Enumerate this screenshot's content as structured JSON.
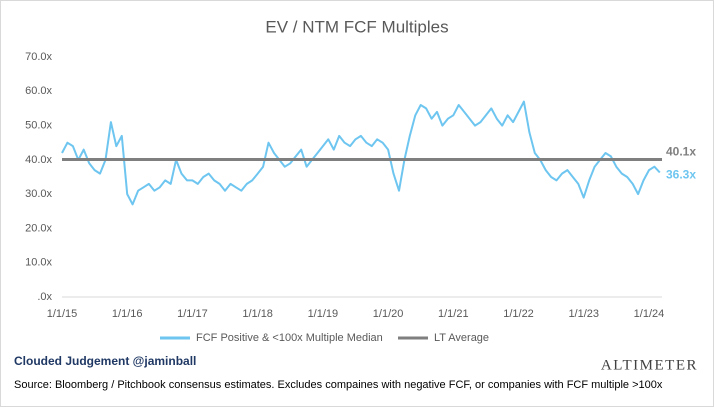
{
  "chart_data": {
    "type": "line",
    "title": "EV / NTM FCF Multiples",
    "x": [
      2015.0,
      2015.083,
      2015.167,
      2015.25,
      2015.333,
      2015.417,
      2015.5,
      2015.583,
      2015.667,
      2015.75,
      2015.833,
      2015.917,
      2016.0,
      2016.083,
      2016.167,
      2016.25,
      2016.333,
      2016.417,
      2016.5,
      2016.583,
      2016.667,
      2016.75,
      2016.833,
      2016.917,
      2017.0,
      2017.083,
      2017.167,
      2017.25,
      2017.333,
      2017.417,
      2017.5,
      2017.583,
      2017.667,
      2017.75,
      2017.833,
      2017.917,
      2018.0,
      2018.083,
      2018.167,
      2018.25,
      2018.333,
      2018.417,
      2018.5,
      2018.583,
      2018.667,
      2018.75,
      2018.833,
      2018.917,
      2019.0,
      2019.083,
      2019.167,
      2019.25,
      2019.333,
      2019.417,
      2019.5,
      2019.583,
      2019.667,
      2019.75,
      2019.833,
      2019.917,
      2020.0,
      2020.083,
      2020.167,
      2020.25,
      2020.333,
      2020.417,
      2020.5,
      2020.583,
      2020.667,
      2020.75,
      2020.833,
      2020.917,
      2021.0,
      2021.083,
      2021.167,
      2021.25,
      2021.333,
      2021.417,
      2021.5,
      2021.583,
      2021.667,
      2021.75,
      2021.833,
      2021.917,
      2022.0,
      2022.083,
      2022.167,
      2022.25,
      2022.333,
      2022.417,
      2022.5,
      2022.583,
      2022.667,
      2022.75,
      2022.833,
      2022.917,
      2023.0,
      2023.083,
      2023.167,
      2023.25,
      2023.333,
      2023.417,
      2023.5,
      2023.583,
      2023.667,
      2023.75,
      2023.833,
      2023.917,
      2024.0,
      2024.083,
      2024.167
    ],
    "series": [
      {
        "name": "FCF Positive & <100x Multiple Median",
        "color": "#6ec6f0",
        "end_label": "36.3x",
        "values": [
          42,
          45,
          44,
          40,
          43,
          39,
          37,
          36,
          40,
          51,
          44,
          47,
          30,
          27,
          31,
          32,
          33,
          31,
          32,
          34,
          33,
          40,
          36,
          34,
          34,
          33,
          35,
          36,
          34,
          33,
          31,
          33,
          32,
          31,
          33,
          34,
          36,
          38,
          45,
          42,
          40,
          38,
          39,
          41,
          43,
          38,
          40,
          42,
          44,
          46,
          43,
          47,
          45,
          44,
          46,
          47,
          45,
          44,
          46,
          45,
          43,
          36,
          31,
          40,
          47,
          53,
          56,
          55,
          52,
          54,
          50,
          52,
          53,
          56,
          54,
          52,
          50,
          51,
          53,
          55,
          52,
          50,
          53,
          51,
          54,
          57,
          48,
          42,
          40,
          37,
          35,
          34,
          36,
          37,
          35,
          33,
          29,
          34,
          38,
          40,
          42,
          41,
          38,
          36,
          35,
          33,
          30,
          34,
          37,
          38,
          36.3
        ]
      }
    ],
    "reference_line": {
      "name": "LT Average",
      "value": 40.1,
      "value_label": "40.1x",
      "color": "#7f7f7f"
    },
    "xlim": [
      2015,
      2024.2
    ],
    "xticks": [
      {
        "value": 2015,
        "label": "1/1/15"
      },
      {
        "value": 2016,
        "label": "1/1/16"
      },
      {
        "value": 2017,
        "label": "1/1/17"
      },
      {
        "value": 2018,
        "label": "1/1/18"
      },
      {
        "value": 2019,
        "label": "1/1/19"
      },
      {
        "value": 2020,
        "label": "1/1/20"
      },
      {
        "value": 2021,
        "label": "1/1/21"
      },
      {
        "value": 2022,
        "label": "1/1/22"
      },
      {
        "value": 2023,
        "label": "1/1/23"
      },
      {
        "value": 2024,
        "label": "1/1/24"
      }
    ],
    "ylim": [
      0,
      70
    ],
    "yticks": [
      {
        "value": 0,
        "label": ".0x"
      },
      {
        "value": 10,
        "label": "10.0x"
      },
      {
        "value": 20,
        "label": "20.0x"
      },
      {
        "value": 30,
        "label": "30.0x"
      },
      {
        "value": 40,
        "label": "40.0x"
      },
      {
        "value": 50,
        "label": "50.0x"
      },
      {
        "value": 60,
        "label": "60.0x"
      },
      {
        "value": 70,
        "label": "70.0x"
      }
    ]
  },
  "credit": "Clouded Judgement @jaminball",
  "brand": "Altimeter",
  "source": "Source: Bloomberg / Pitchbook consensus estimates. Excludes compaines with negative FCF, or companies with FCF multiple >100x"
}
